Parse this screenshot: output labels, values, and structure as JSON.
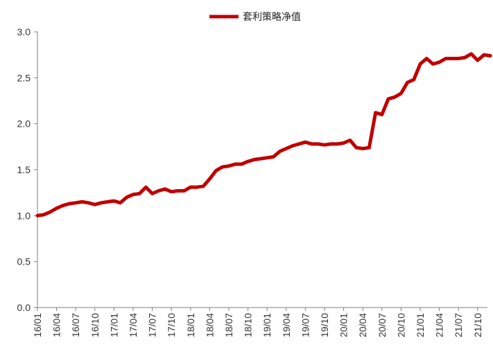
{
  "chart_data": {
    "type": "line",
    "series": [
      {
        "name": "套利策略净值",
        "color": "#c00000",
        "points": [
          [
            "16/01",
            1.0
          ],
          [
            "16/02",
            1.01
          ],
          [
            "16/03",
            1.04
          ],
          [
            "16/04",
            1.08
          ],
          [
            "16/05",
            1.11
          ],
          [
            "16/06",
            1.13
          ],
          [
            "16/07",
            1.14
          ],
          [
            "16/08",
            1.15
          ],
          [
            "16/09",
            1.14
          ],
          [
            "16/10",
            1.12
          ],
          [
            "16/11",
            1.14
          ],
          [
            "16/12",
            1.15
          ],
          [
            "17/01",
            1.16
          ],
          [
            "17/02",
            1.14
          ],
          [
            "17/03",
            1.2
          ],
          [
            "17/04",
            1.23
          ],
          [
            "17/05",
            1.24
          ],
          [
            "17/06",
            1.31
          ],
          [
            "17/07",
            1.24
          ],
          [
            "17/08",
            1.27
          ],
          [
            "17/09",
            1.29
          ],
          [
            "17/10",
            1.26
          ],
          [
            "17/11",
            1.27
          ],
          [
            "17/12",
            1.27
          ],
          [
            "18/01",
            1.31
          ],
          [
            "18/02",
            1.31
          ],
          [
            "18/03",
            1.32
          ],
          [
            "18/04",
            1.4
          ],
          [
            "18/05",
            1.49
          ],
          [
            "18/06",
            1.53
          ],
          [
            "18/07",
            1.54
          ],
          [
            "18/08",
            1.56
          ],
          [
            "18/09",
            1.56
          ],
          [
            "18/10",
            1.59
          ],
          [
            "18/11",
            1.61
          ],
          [
            "18/12",
            1.62
          ],
          [
            "19/01",
            1.63
          ],
          [
            "19/02",
            1.64
          ],
          [
            "19/03",
            1.7
          ],
          [
            "19/04",
            1.73
          ],
          [
            "19/05",
            1.76
          ],
          [
            "19/06",
            1.78
          ],
          [
            "19/07",
            1.8
          ],
          [
            "19/08",
            1.78
          ],
          [
            "19/09",
            1.78
          ],
          [
            "19/10",
            1.77
          ],
          [
            "19/11",
            1.78
          ],
          [
            "19/12",
            1.78
          ],
          [
            "20/01",
            1.79
          ],
          [
            "20/02",
            1.82
          ],
          [
            "20/03",
            1.74
          ],
          [
            "20/04",
            1.73
          ],
          [
            "20/05",
            1.74
          ],
          [
            "20/06",
            2.12
          ],
          [
            "20/07",
            2.1
          ],
          [
            "20/08",
            2.27
          ],
          [
            "20/09",
            2.29
          ],
          [
            "20/10",
            2.33
          ],
          [
            "20/11",
            2.45
          ],
          [
            "20/12",
            2.48
          ],
          [
            "21/01",
            2.65
          ],
          [
            "21/02",
            2.71
          ],
          [
            "21/03",
            2.65
          ],
          [
            "21/04",
            2.67
          ],
          [
            "21/05",
            2.71
          ],
          [
            "21/06",
            2.71
          ],
          [
            "21/07",
            2.71
          ],
          [
            "21/08",
            2.72
          ],
          [
            "21/09",
            2.76
          ],
          [
            "21/10",
            2.69
          ],
          [
            "21/11",
            2.75
          ],
          [
            "21/12",
            2.74
          ]
        ]
      }
    ],
    "x_ticks": [
      "16/01",
      "16/04",
      "16/07",
      "16/10",
      "17/01",
      "17/04",
      "17/07",
      "17/10",
      "18/01",
      "18/04",
      "18/07",
      "18/10",
      "19/01",
      "19/04",
      "19/07",
      "19/10",
      "20/01",
      "20/04",
      "20/07",
      "20/10",
      "21/01",
      "21/04",
      "21/07",
      "21/10"
    ],
    "y_ticks": [
      "0.0",
      "0.5",
      "1.0",
      "1.5",
      "2.0",
      "2.5",
      "3.0"
    ],
    "ylim": [
      0,
      3.0
    ],
    "grid": false,
    "legend_position": "top-center"
  }
}
